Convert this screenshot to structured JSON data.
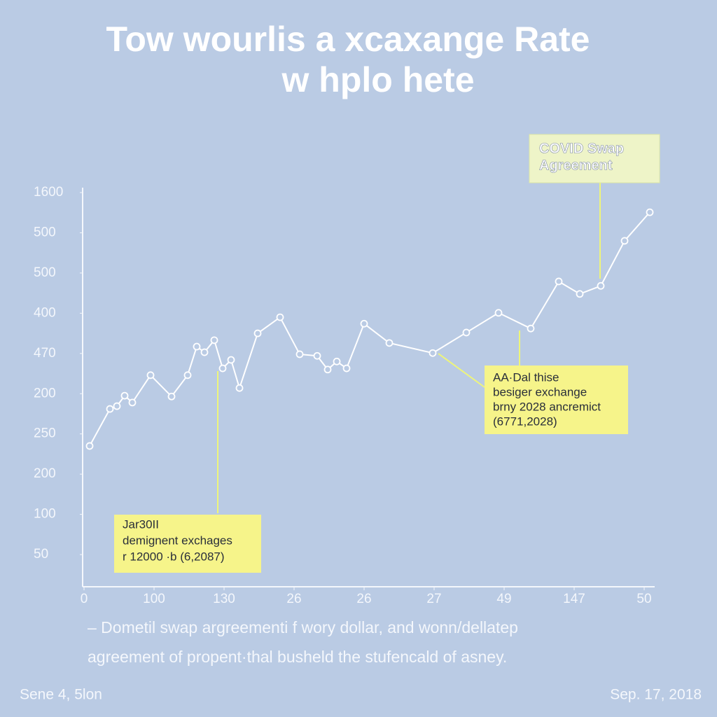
{
  "chart_data": {
    "type": "line",
    "title": [
      "Tow  wourlis a xcaxange Rate",
      "w  hplo hete"
    ],
    "x": [
      0.08,
      0.37,
      0.47,
      0.58,
      0.69,
      0.95,
      1.25,
      1.48,
      1.61,
      1.72,
      1.86,
      1.98,
      2.1,
      2.22,
      2.48,
      2.8,
      3.08,
      3.33,
      3.48,
      3.61,
      3.75,
      4.0,
      4.36,
      4.98,
      5.46,
      5.92,
      6.38,
      6.78,
      7.08,
      7.38,
      7.72,
      8.08
    ],
    "series": [
      {
        "color": "#ffffff",
        "values": [
          3.7,
          4.62,
          4.69,
          4.95,
          4.78,
          5.46,
          4.93,
          5.46,
          6.17,
          6.03,
          6.33,
          5.63,
          5.84,
          5.14,
          6.5,
          6.9,
          5.98,
          5.94,
          5.6,
          5.8,
          5.63,
          6.74,
          6.26,
          6.01,
          6.52,
          7.01,
          6.62,
          7.79,
          7.48,
          7.68,
          8.8,
          9.51
        ]
      }
    ],
    "xlim": [
      0,
      8.15
    ],
    "ylim": [
      0.2,
      10
    ],
    "xticks": [
      {
        "value": 0,
        "label": "0"
      },
      {
        "value": 1,
        "label": "100"
      },
      {
        "value": 2,
        "label": "130"
      },
      {
        "value": 3,
        "label": "26"
      },
      {
        "value": 4,
        "label": "26"
      },
      {
        "value": 5,
        "label": "27"
      },
      {
        "value": 6,
        "label": "49"
      },
      {
        "value": 7,
        "label": "147"
      },
      {
        "value": 8,
        "label": "50"
      }
    ],
    "yticks": [
      {
        "value": 1,
        "label": "50"
      },
      {
        "value": 2,
        "label": "100"
      },
      {
        "value": 3,
        "label": "200"
      },
      {
        "value": 4,
        "label": "250"
      },
      {
        "value": 5,
        "label": "200"
      },
      {
        "value": 6,
        "label": "470"
      },
      {
        "value": 7,
        "label": "400"
      },
      {
        "value": 8,
        "label": "500"
      },
      {
        "value": 9,
        "label": "500"
      },
      {
        "value": 10,
        "label": "1600"
      }
    ],
    "annotations": [
      {
        "lines": [
          "Jar30II",
          "demignent exchages",
          "r 12000 ·b (6,2087)"
        ]
      },
      {
        "lines": [
          "AA·Dal thise",
          "besiger exchange",
          "brny 2028 ancremict",
          "(6771,2028)"
        ]
      },
      {
        "lines": [
          "COVID Swap",
          "Agreement"
        ]
      }
    ],
    "footnote": [
      "– Dometil swap argreementi f wory dollar, and wonn/dellatep",
      "agreement of propent·thal busheld the stufencald of asney."
    ],
    "source": "Sene 4, 5lon",
    "date": "Sep. 17, 2018"
  }
}
